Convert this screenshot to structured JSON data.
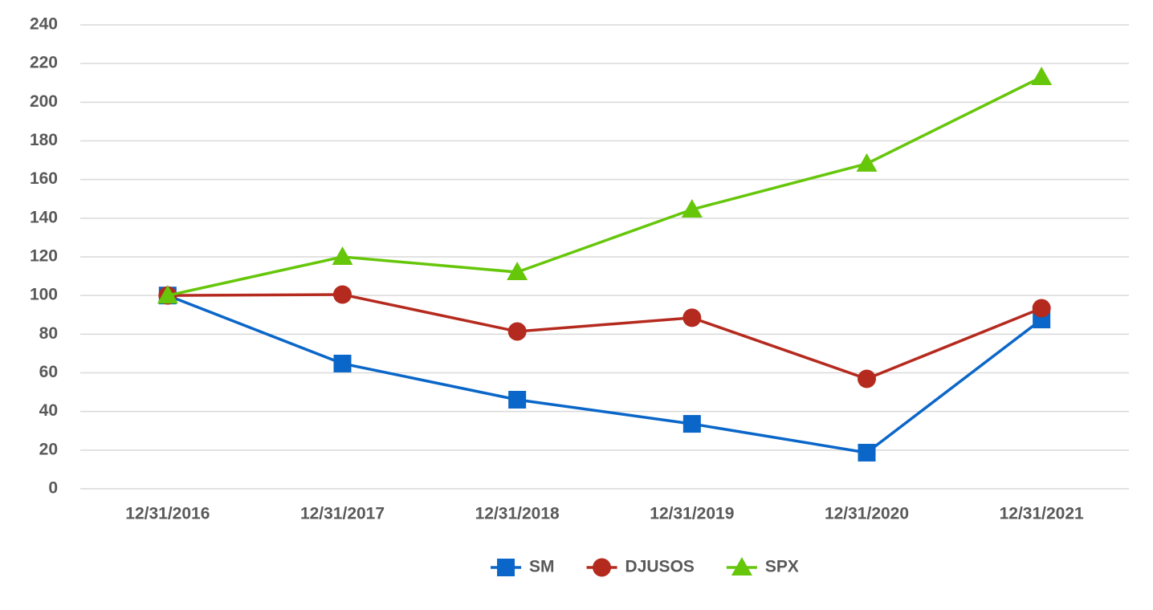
{
  "chart_data": {
    "type": "line",
    "categories": [
      "12/31/2016",
      "12/31/2017",
      "12/31/2018",
      "12/31/2019",
      "12/31/2020",
      "12/31/2021"
    ],
    "series": [
      {
        "name": "SM",
        "color": "#0a66c8",
        "marker": "square",
        "values": [
          100,
          64.8,
          46.1,
          33.6,
          18.7,
          87.6
        ]
      },
      {
        "name": "DJUSOS",
        "color": "#b52a1e",
        "marker": "circle",
        "values": [
          100,
          100.5,
          81.4,
          88.5,
          56.9,
          93.4
        ]
      },
      {
        "name": "SPX",
        "color": "#66c60a",
        "marker": "triangle",
        "values": [
          100,
          120,
          112.1,
          144.5,
          168.2,
          213
        ]
      }
    ],
    "ylim": [
      0,
      240
    ],
    "yticks": [
      0,
      20,
      40,
      60,
      80,
      100,
      120,
      140,
      160,
      180,
      200,
      220,
      240
    ],
    "grid": true,
    "legend": "bottom"
  }
}
